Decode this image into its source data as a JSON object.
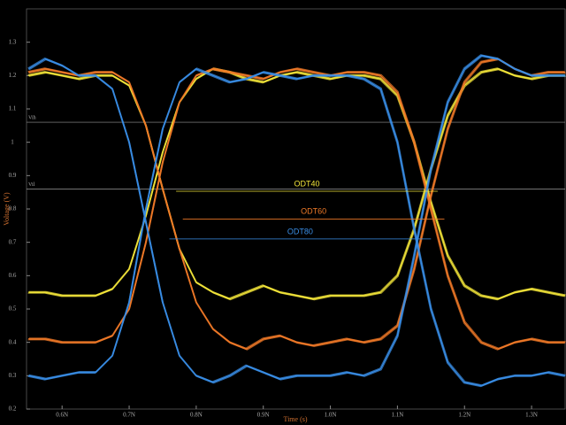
{
  "chart_data": {
    "type": "eye",
    "xlabel": "Time (s)",
    "ylabel": "Voltage (V)",
    "x": [
      0.55,
      0.575,
      0.6,
      0.625,
      0.65,
      0.675,
      0.7,
      0.725,
      0.75,
      0.775,
      0.8,
      0.825,
      0.85,
      0.875,
      0.9,
      0.925,
      0.95,
      0.975,
      1.0,
      1.025,
      1.05,
      1.075,
      1.1,
      1.125,
      1.15,
      1.175,
      1.2,
      1.225,
      1.25,
      1.275,
      1.3,
      1.325,
      1.35
    ],
    "xlim": [
      0.547,
      1.35
    ],
    "ylim": [
      0.2,
      1.4
    ],
    "xticks": [
      {
        "value": 0.6,
        "label": "0.6N"
      },
      {
        "value": 0.7,
        "label": "0.7N"
      },
      {
        "value": 0.8,
        "label": "0.8N"
      },
      {
        "value": 0.9,
        "label": "0.9N"
      },
      {
        "value": 1.0,
        "label": "1.0N"
      },
      {
        "value": 1.1,
        "label": "1.1N"
      },
      {
        "value": 1.2,
        "label": "1.2N"
      },
      {
        "value": 1.3,
        "label": "1.3N"
      }
    ],
    "yticks": [
      0.2,
      0.3,
      0.4,
      0.5,
      0.6,
      0.7,
      0.8,
      0.9,
      1.0,
      1.1,
      1.2,
      1.3
    ],
    "grid": false,
    "ref_lines": [
      {
        "label": "Vih",
        "value": 1.06
      },
      {
        "label": "Vil",
        "value": 0.86
      }
    ],
    "series": [
      {
        "name": "ODT40",
        "color": "#f2e43a",
        "traces": [
          [
            1.2,
            1.21,
            1.2,
            1.19,
            1.2,
            1.2,
            1.17,
            1.05,
            0.86,
            0.68,
            0.58,
            0.55,
            0.53,
            0.55,
            0.57,
            0.55,
            0.54,
            0.53,
            0.54,
            0.54,
            0.54,
            0.55,
            0.6,
            0.74,
            0.92,
            1.08,
            1.17,
            1.21,
            1.22,
            1.2,
            1.19,
            1.2,
            1.2
          ],
          [
            0.55,
            0.55,
            0.54,
            0.54,
            0.54,
            0.56,
            0.62,
            0.78,
            0.97,
            1.12,
            1.19,
            1.22,
            1.21,
            1.19,
            1.18,
            1.2,
            1.21,
            1.2,
            1.19,
            1.2,
            1.2,
            1.19,
            1.14,
            1.0,
            0.82,
            0.66,
            0.57,
            0.54,
            0.53,
            0.55,
            0.56,
            0.55,
            0.54
          ]
        ]
      },
      {
        "name": "ODT60",
        "color": "#f07a28",
        "traces": [
          [
            1.21,
            1.22,
            1.21,
            1.2,
            1.21,
            1.21,
            1.18,
            1.05,
            0.86,
            0.68,
            0.52,
            0.44,
            0.4,
            0.38,
            0.41,
            0.42,
            0.4,
            0.39,
            0.4,
            0.41,
            0.4,
            0.41,
            0.45,
            0.62,
            0.84,
            1.04,
            1.18,
            1.24,
            1.25,
            1.22,
            1.2,
            1.21,
            1.21
          ],
          [
            0.41,
            0.41,
            0.4,
            0.4,
            0.4,
            0.42,
            0.5,
            0.7,
            0.94,
            1.12,
            1.2,
            1.22,
            1.21,
            1.2,
            1.19,
            1.21,
            1.22,
            1.21,
            1.2,
            1.21,
            1.21,
            1.2,
            1.15,
            1.0,
            0.8,
            0.6,
            0.46,
            0.4,
            0.38,
            0.4,
            0.41,
            0.4,
            0.4
          ]
        ]
      },
      {
        "name": "ODT80",
        "color": "#3a8ee6",
        "traces": [
          [
            1.22,
            1.25,
            1.23,
            1.2,
            1.2,
            1.16,
            1.0,
            0.76,
            0.52,
            0.36,
            0.3,
            0.28,
            0.3,
            0.33,
            0.31,
            0.29,
            0.3,
            0.3,
            0.3,
            0.31,
            0.3,
            0.32,
            0.42,
            0.66,
            0.92,
            1.12,
            1.22,
            1.26,
            1.25,
            1.22,
            1.2,
            1.2,
            1.2
          ],
          [
            0.3,
            0.29,
            0.3,
            0.31,
            0.31,
            0.36,
            0.52,
            0.8,
            1.04,
            1.18,
            1.22,
            1.2,
            1.18,
            1.19,
            1.21,
            1.2,
            1.19,
            1.2,
            1.2,
            1.2,
            1.19,
            1.16,
            1.0,
            0.74,
            0.5,
            0.34,
            0.28,
            0.27,
            0.29,
            0.3,
            0.3,
            0.31,
            0.3
          ]
        ]
      }
    ],
    "annotations": [
      {
        "text": "ODT40",
        "y": 0.853,
        "x": [
          0.77,
          1.16
        ],
        "color": "#f2e43a"
      },
      {
        "text": "ODT60",
        "y": 0.77,
        "x": [
          0.78,
          1.17
        ],
        "color": "#f07a28"
      },
      {
        "text": "ODT80",
        "y": 0.71,
        "x": [
          0.76,
          1.15
        ],
        "color": "#3a8ee6"
      }
    ]
  }
}
